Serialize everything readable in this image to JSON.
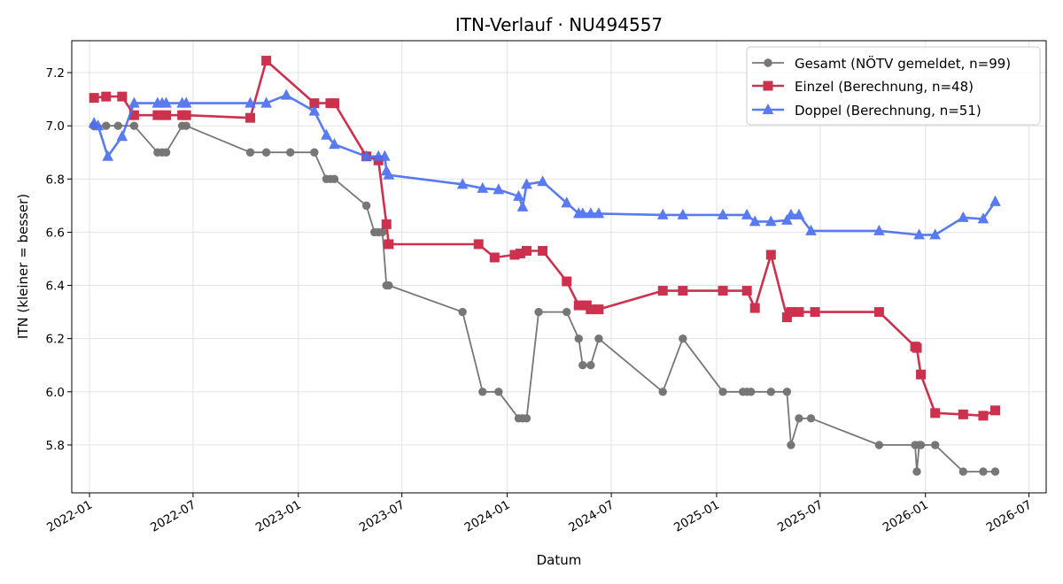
{
  "chart_data": {
    "type": "line",
    "title": "ITN-Verlauf · NU494557",
    "xlabel": "Datum",
    "ylabel": "ITN  (kleiner = besser)",
    "xlim": [
      "2021-12-01",
      "2026-07-31"
    ],
    "ylim": [
      5.62,
      7.32
    ],
    "x_ticks": [
      "2022-01",
      "2022-07",
      "2023-01",
      "2023-07",
      "2024-01",
      "2024-07",
      "2025-01",
      "2025-07",
      "2026-01",
      "2026-07"
    ],
    "y_ticks": [
      5.8,
      6.0,
      6.2,
      6.4,
      6.6,
      6.8,
      7.0,
      7.2
    ],
    "grid": true,
    "legend_position": "top-right",
    "series": [
      {
        "name": "Gesamt (NÖTV gemeldet, n=99)",
        "color": "#444444",
        "marker": "circle",
        "points": [
          [
            "2022-01-08",
            7.0
          ],
          [
            "2022-01-30",
            7.0
          ],
          [
            "2022-02-20",
            7.0
          ],
          [
            "2022-03-20",
            7.0
          ],
          [
            "2022-04-30",
            6.9
          ],
          [
            "2022-05-08",
            6.9
          ],
          [
            "2022-05-15",
            6.9
          ],
          [
            "2022-06-12",
            7.0
          ],
          [
            "2022-06-19",
            7.0
          ],
          [
            "2022-10-09",
            6.9
          ],
          [
            "2022-11-06",
            6.9
          ],
          [
            "2022-12-18",
            6.9
          ],
          [
            "2023-01-29",
            6.9
          ],
          [
            "2023-02-19",
            6.8
          ],
          [
            "2023-02-26",
            6.8
          ],
          [
            "2023-03-05",
            6.8
          ],
          [
            "2023-04-30",
            6.7
          ],
          [
            "2023-05-14",
            6.6
          ],
          [
            "2023-05-21",
            6.6
          ],
          [
            "2023-05-28",
            6.6
          ],
          [
            "2023-06-04",
            6.4
          ],
          [
            "2023-06-08",
            6.4
          ],
          [
            "2023-10-15",
            6.3
          ],
          [
            "2023-11-19",
            6.0
          ],
          [
            "2023-12-17",
            6.0
          ],
          [
            "2024-01-21",
            5.9
          ],
          [
            "2024-01-28",
            5.9
          ],
          [
            "2024-02-04",
            5.9
          ],
          [
            "2024-02-25",
            6.3
          ],
          [
            "2024-04-14",
            6.3
          ],
          [
            "2024-05-05",
            6.2
          ],
          [
            "2024-05-12",
            6.1
          ],
          [
            "2024-05-26",
            6.1
          ],
          [
            "2024-06-09",
            6.2
          ],
          [
            "2024-09-29",
            6.0
          ],
          [
            "2024-11-03",
            6.2
          ],
          [
            "2025-01-12",
            6.0
          ],
          [
            "2025-02-16",
            6.0
          ],
          [
            "2025-02-23",
            6.0
          ],
          [
            "2025-03-02",
            6.0
          ],
          [
            "2025-04-06",
            6.0
          ],
          [
            "2025-05-04",
            6.0
          ],
          [
            "2025-05-11",
            5.8
          ],
          [
            "2025-05-25",
            5.9
          ],
          [
            "2025-06-15",
            5.9
          ],
          [
            "2025-10-12",
            5.8
          ],
          [
            "2025-12-14",
            5.8
          ],
          [
            "2025-12-17",
            5.7
          ],
          [
            "2025-12-21",
            5.8
          ],
          [
            "2025-12-24",
            5.8
          ],
          [
            "2026-01-18",
            5.8
          ],
          [
            "2026-03-08",
            5.7
          ],
          [
            "2026-04-12",
            5.7
          ],
          [
            "2026-05-03",
            5.7
          ]
        ]
      },
      {
        "name": "Einzel (Berechnung, n=48)",
        "color": "#c8203f",
        "marker": "square",
        "points": [
          [
            "2022-01-09",
            7.105
          ],
          [
            "2022-01-30",
            7.11
          ],
          [
            "2022-02-27",
            7.11
          ],
          [
            "2022-03-20",
            7.04
          ],
          [
            "2022-04-30",
            7.04
          ],
          [
            "2022-05-15",
            7.04
          ],
          [
            "2022-06-12",
            7.04
          ],
          [
            "2022-06-19",
            7.04
          ],
          [
            "2022-10-09",
            7.03
          ],
          [
            "2022-11-06",
            7.245
          ],
          [
            "2023-01-29",
            7.085
          ],
          [
            "2023-02-26",
            7.085
          ],
          [
            "2023-03-05",
            7.085
          ],
          [
            "2023-04-30",
            6.885
          ],
          [
            "2023-05-21",
            6.87
          ],
          [
            "2023-06-04",
            6.63
          ],
          [
            "2023-06-08",
            6.555
          ],
          [
            "2023-11-12",
            6.555
          ],
          [
            "2023-12-10",
            6.505
          ],
          [
            "2024-01-14",
            6.515
          ],
          [
            "2024-01-24",
            6.52
          ],
          [
            "2024-02-04",
            6.53
          ],
          [
            "2024-03-03",
            6.53
          ],
          [
            "2024-04-14",
            6.415
          ],
          [
            "2024-05-05",
            6.325
          ],
          [
            "2024-05-19",
            6.325
          ],
          [
            "2024-05-26",
            6.31
          ],
          [
            "2024-06-09",
            6.31
          ],
          [
            "2024-09-29",
            6.38
          ],
          [
            "2024-11-03",
            6.38
          ],
          [
            "2025-01-12",
            6.38
          ],
          [
            "2025-02-23",
            6.38
          ],
          [
            "2025-03-09",
            6.315
          ],
          [
            "2025-04-06",
            6.515
          ],
          [
            "2025-05-04",
            6.28
          ],
          [
            "2025-05-11",
            6.3
          ],
          [
            "2025-05-25",
            6.3
          ],
          [
            "2025-06-22",
            6.3
          ],
          [
            "2025-10-12",
            6.3
          ],
          [
            "2025-12-14",
            6.17
          ],
          [
            "2025-12-17",
            6.165
          ],
          [
            "2025-12-24",
            6.065
          ],
          [
            "2026-01-18",
            5.92
          ],
          [
            "2026-03-08",
            5.915
          ],
          [
            "2026-04-12",
            5.91
          ],
          [
            "2026-05-03",
            5.93
          ]
        ]
      },
      {
        "name": "Doppel (Berechnung, n=51)",
        "color": "#4b6ff0",
        "marker": "triangle",
        "points": [
          [
            "2022-01-09",
            7.01
          ],
          [
            "2022-01-16",
            7.0
          ],
          [
            "2022-02-02",
            6.885
          ],
          [
            "2022-02-27",
            6.96
          ],
          [
            "2022-03-20",
            7.085
          ],
          [
            "2022-04-30",
            7.085
          ],
          [
            "2022-05-08",
            7.085
          ],
          [
            "2022-05-15",
            7.085
          ],
          [
            "2022-06-12",
            7.085
          ],
          [
            "2022-06-19",
            7.085
          ],
          [
            "2022-10-09",
            7.085
          ],
          [
            "2022-11-06",
            7.085
          ],
          [
            "2022-12-11",
            7.115
          ],
          [
            "2023-01-29",
            7.055
          ],
          [
            "2023-02-19",
            6.965
          ],
          [
            "2023-03-05",
            6.93
          ],
          [
            "2023-04-30",
            6.885
          ],
          [
            "2023-05-21",
            6.885
          ],
          [
            "2023-06-01",
            6.885
          ],
          [
            "2023-06-04",
            6.83
          ],
          [
            "2023-06-08",
            6.815
          ],
          [
            "2023-10-15",
            6.78
          ],
          [
            "2023-11-19",
            6.765
          ],
          [
            "2023-12-17",
            6.76
          ],
          [
            "2024-01-21",
            6.735
          ],
          [
            "2024-01-28",
            6.695
          ],
          [
            "2024-02-04",
            6.78
          ],
          [
            "2024-03-03",
            6.79
          ],
          [
            "2024-04-14",
            6.71
          ],
          [
            "2024-05-05",
            6.67
          ],
          [
            "2024-05-12",
            6.67
          ],
          [
            "2024-05-26",
            6.67
          ],
          [
            "2024-06-09",
            6.67
          ],
          [
            "2024-09-29",
            6.665
          ],
          [
            "2024-11-03",
            6.665
          ],
          [
            "2025-01-12",
            6.665
          ],
          [
            "2025-02-23",
            6.665
          ],
          [
            "2025-03-09",
            6.64
          ],
          [
            "2025-04-06",
            6.64
          ],
          [
            "2025-05-04",
            6.645
          ],
          [
            "2025-05-11",
            6.665
          ],
          [
            "2025-05-25",
            6.665
          ],
          [
            "2025-06-15",
            6.605
          ],
          [
            "2025-10-12",
            6.605
          ],
          [
            "2025-12-21",
            6.59
          ],
          [
            "2026-01-18",
            6.59
          ],
          [
            "2026-03-08",
            6.655
          ],
          [
            "2026-04-12",
            6.65
          ],
          [
            "2026-05-03",
            6.715
          ]
        ]
      }
    ]
  }
}
